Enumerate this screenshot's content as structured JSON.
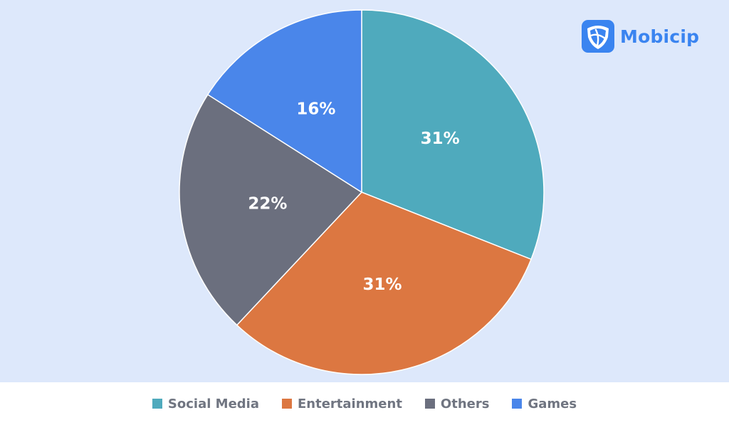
{
  "brand": {
    "name": "Mobicip",
    "logo_icon": "mobicip-shield-icon",
    "color": "#3a84f0"
  },
  "background_color": "#dde8fb",
  "chart_data": {
    "type": "pie",
    "start_angle": "12 o'clock, clockwise",
    "slices": [
      {
        "label": "Social Media",
        "value": 31,
        "display": "31%",
        "color": "#4faabd"
      },
      {
        "label": "Entertainment",
        "value": 31,
        "display": "31%",
        "color": "#dc7741"
      },
      {
        "label": "Others",
        "value": 22,
        "display": "22%",
        "color": "#6b6f7e"
      },
      {
        "label": "Games",
        "value": 16,
        "display": "16%",
        "color": "#4a86ea"
      }
    ],
    "legend_placement": "bottom"
  }
}
